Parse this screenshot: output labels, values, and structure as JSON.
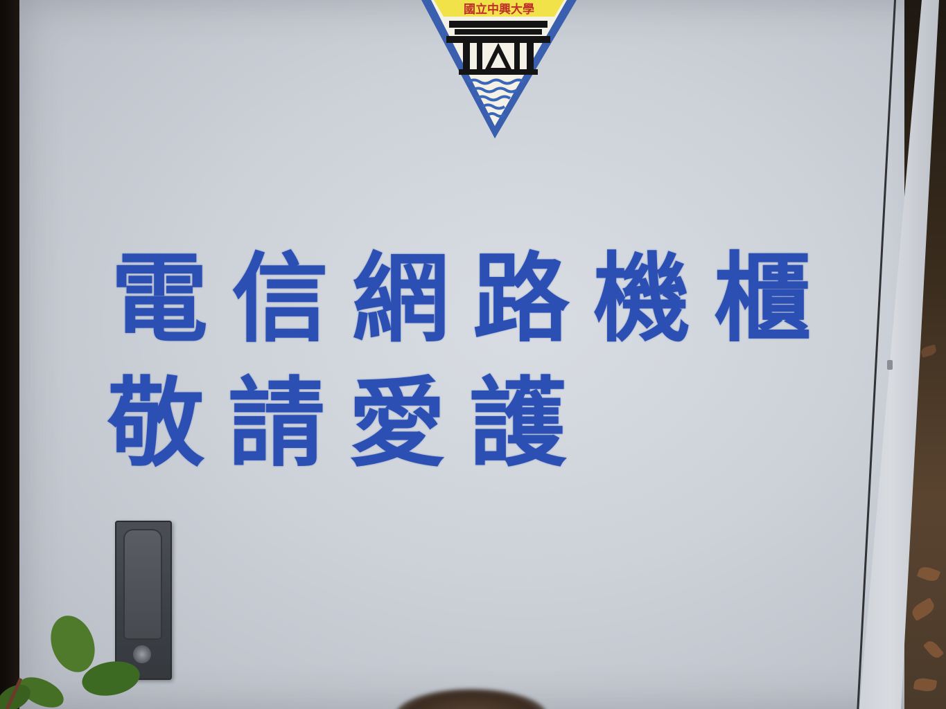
{
  "emblem": {
    "banner_text": "國立中興大學",
    "colors": {
      "border": "#3a5fae",
      "banner": "#f2e24a",
      "banner_text": "#c0302a",
      "building": "#141414",
      "water": "#3a67b8"
    }
  },
  "sign": {
    "line1": "電信網路機櫃",
    "line2": "敬請愛護",
    "color": "#2c4fb3"
  },
  "cabinet": {
    "surface_color": "#cdd2d9"
  }
}
